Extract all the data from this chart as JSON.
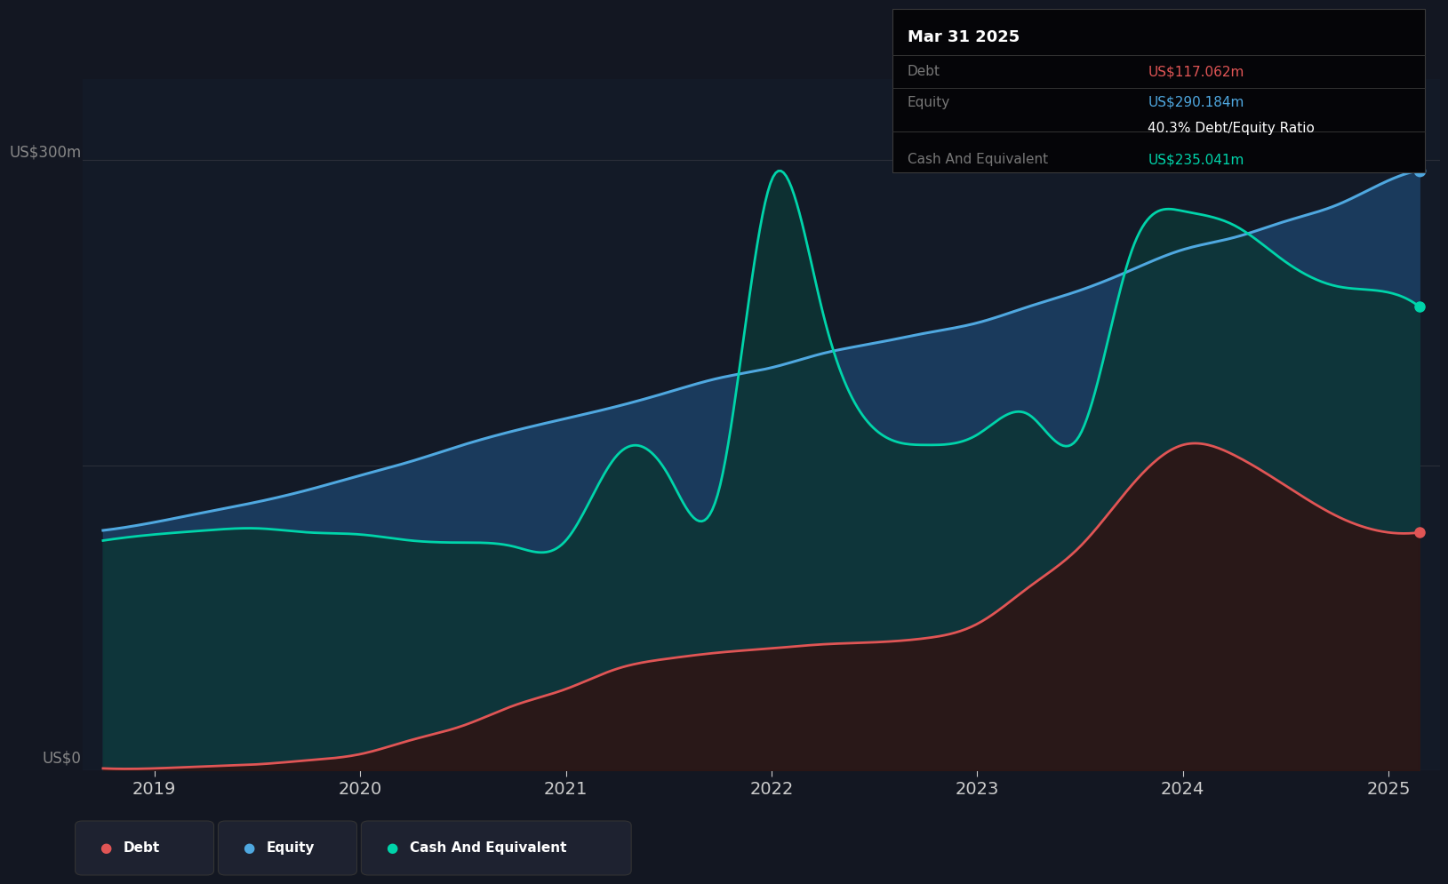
{
  "bg_color": "#131722",
  "plot_bg_color": "#131a27",
  "grid_color": "#2a2e39",
  "title_box": {
    "date": "Mar 31 2025",
    "debt_label": "Debt",
    "debt_value": "US$117.062m",
    "equity_label": "Equity",
    "equity_value": "US$290.184m",
    "ratio": "40.3% Debt/Equity Ratio",
    "cash_label": "Cash And Equivalent",
    "cash_value": "US$235.041m",
    "box_bg": "#050508",
    "date_color": "#ffffff",
    "label_color": "#777777",
    "debt_value_color": "#e05555",
    "equity_value_color": "#4fa8e0",
    "ratio_color": "#ffffff",
    "cash_value_color": "#00d4aa"
  },
  "ylabel_top": "US$300m",
  "ylabel_bottom": "US$0",
  "x_ticks": [
    2019,
    2020,
    2021,
    2022,
    2023,
    2024,
    2025
  ],
  "ylim": [
    0,
    340
  ],
  "xlim_left": 2018.65,
  "xlim_right": 2025.25,
  "debt_color": "#e05555",
  "equity_color": "#4fa8e0",
  "cash_color": "#00d4aa",
  "legend": [
    {
      "label": "Debt",
      "color": "#e05555"
    },
    {
      "label": "Equity",
      "color": "#4fa8e0"
    },
    {
      "label": "Cash And Equivalent",
      "color": "#00d4aa"
    }
  ],
  "time": [
    2018.75,
    2019.0,
    2019.25,
    2019.5,
    2019.75,
    2020.0,
    2020.25,
    2020.5,
    2020.75,
    2021.0,
    2021.25,
    2021.5,
    2021.75,
    2022.0,
    2022.25,
    2022.5,
    2022.75,
    2023.0,
    2023.25,
    2023.5,
    2023.75,
    2024.0,
    2024.25,
    2024.5,
    2024.75,
    2025.0,
    2025.15
  ],
  "debt": [
    1,
    1,
    2,
    3,
    5,
    8,
    15,
    22,
    32,
    40,
    50,
    55,
    58,
    60,
    62,
    63,
    65,
    72,
    90,
    110,
    140,
    160,
    155,
    140,
    125,
    117,
    117
  ],
  "equity": [
    118,
    122,
    127,
    132,
    138,
    145,
    152,
    160,
    167,
    173,
    179,
    186,
    193,
    198,
    205,
    210,
    215,
    220,
    228,
    236,
    246,
    256,
    262,
    270,
    278,
    290,
    295
  ],
  "cash": [
    113,
    116,
    118,
    119,
    117,
    116,
    113,
    112,
    110,
    113,
    155,
    145,
    140,
    290,
    225,
    168,
    160,
    165,
    175,
    165,
    255,
    275,
    268,
    250,
    238,
    235,
    228
  ]
}
